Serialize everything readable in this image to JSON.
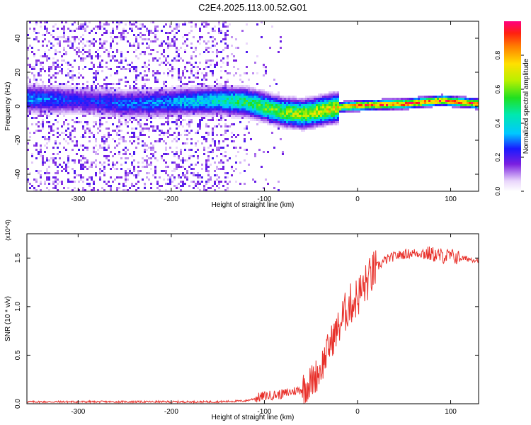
{
  "title": "C2E4.2025.113.00.52.G01",
  "chart_data": [
    {
      "type": "heatmap",
      "xlabel": "Height of straight line (km)",
      "ylabel": "Frequency (Hz)",
      "xlim": [
        -355,
        130
      ],
      "ylim": [
        -50,
        50
      ],
      "xticks": [
        -300,
        -200,
        -100,
        0,
        100
      ],
      "yticks": [
        -40,
        -20,
        0,
        20,
        40
      ],
      "colorbar": {
        "label": "Normalized spectral amplitude",
        "range": [
          0,
          1
        ],
        "ticks": [
          "0.0",
          "0.2",
          "0.4",
          "0.6",
          "0.8"
        ],
        "tick_values": [
          0.0,
          0.2,
          0.4,
          0.6,
          0.8
        ]
      },
      "ridge": [
        {
          "x": -350,
          "f": 5,
          "amp": 0.35
        },
        {
          "x": -300,
          "f": 4,
          "amp": 0.25
        },
        {
          "x": -250,
          "f": 2,
          "amp": 0.3
        },
        {
          "x": -200,
          "f": 3,
          "amp": 0.35
        },
        {
          "x": -150,
          "f": 4,
          "amp": 0.45
        },
        {
          "x": -120,
          "f": 3,
          "amp": 0.55
        },
        {
          "x": -100,
          "f": 0,
          "amp": 0.6
        },
        {
          "x": -80,
          "f": -3,
          "amp": 0.65
        },
        {
          "x": -60,
          "f": -4,
          "amp": 0.7
        },
        {
          "x": -40,
          "f": -2,
          "amp": 0.75
        },
        {
          "x": -20,
          "f": 0,
          "amp": 0.8
        },
        {
          "x": 0,
          "f": 1,
          "amp": 0.9
        },
        {
          "x": 50,
          "f": 2,
          "amp": 0.95
        },
        {
          "x": 90,
          "f": 4,
          "amp": 0.95
        },
        {
          "x": 130,
          "f": 2,
          "amp": 0.95
        }
      ]
    },
    {
      "type": "line",
      "xlabel": "Height of straight line (km)",
      "ylabel": "SNR (10 * v/v)",
      "y_multiplier": "(x10^4)",
      "xlim": [
        -355,
        130
      ],
      "ylim": [
        0,
        1.75
      ],
      "xticks": [
        -300,
        -200,
        -100,
        0,
        100
      ],
      "yticks": [
        0.0,
        0.5,
        1.0,
        1.5
      ],
      "ytick_labels": [
        "0.0",
        "0.5",
        "1.0",
        "1.5"
      ],
      "series": [
        {
          "color": "#e8302a",
          "x": [
            -355,
            -300,
            -250,
            -200,
            -150,
            -120,
            -100,
            -80,
            -60,
            -50,
            -40,
            -30,
            -20,
            -10,
            0,
            10,
            20,
            30,
            40,
            50,
            60,
            70,
            80,
            90,
            100,
            110,
            120,
            130
          ],
          "y": [
            0.02,
            0.02,
            0.02,
            0.02,
            0.02,
            0.03,
            0.08,
            0.1,
            0.15,
            0.22,
            0.35,
            0.6,
            0.8,
            1.0,
            1.1,
            1.25,
            1.4,
            1.48,
            1.52,
            1.54,
            1.55,
            1.55,
            1.54,
            1.52,
            1.52,
            1.5,
            1.49,
            1.48
          ]
        }
      ]
    }
  ]
}
